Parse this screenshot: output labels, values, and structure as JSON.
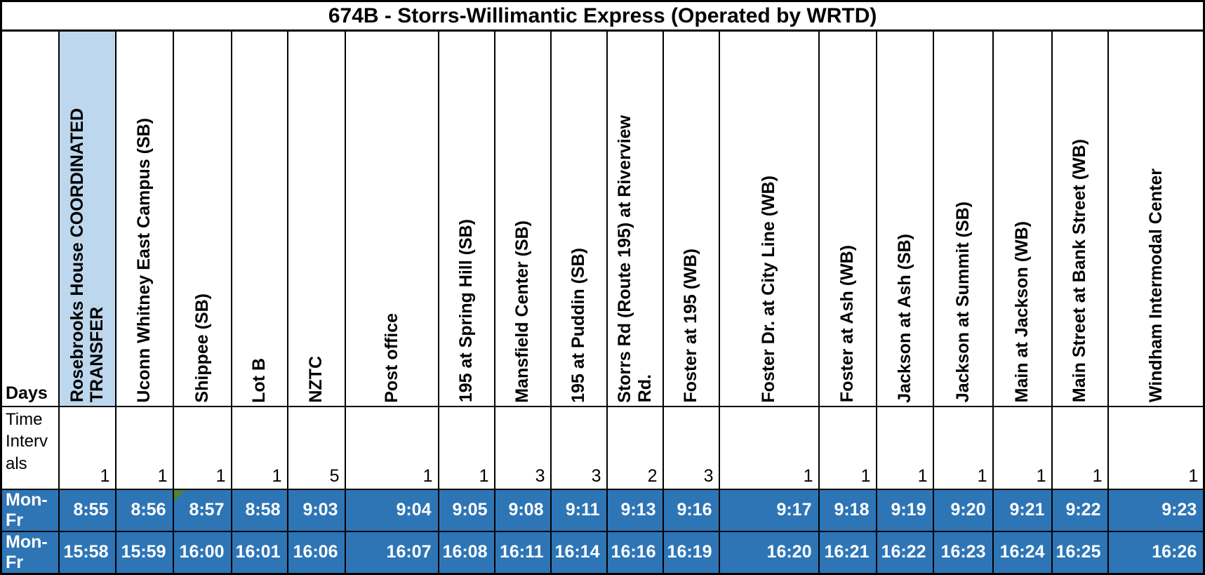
{
  "title": "674B - Storrs-Willimantic Express (Operated by WRTD)",
  "days_label": "Days",
  "intervals_label": "Time Intervals",
  "stops": [
    {
      "label": "Rosebrooks House COORDINATED",
      "label2": "TRANSFER",
      "highlight": true
    },
    {
      "label": "Uconn Whitney East Campus (SB)"
    },
    {
      "label": "Shippee (SB)"
    },
    {
      "label": "Lot B"
    },
    {
      "label": "NZTC"
    },
    {
      "label": "Post office"
    },
    {
      "label": "195 at Spring Hill (SB)"
    },
    {
      "label": "Mansfield Center (SB)"
    },
    {
      "label": "195 at Puddin (SB)"
    },
    {
      "label": "Storrs Rd (Route 195) at Riverview",
      "label2": "Rd."
    },
    {
      "label": "Foster at 195 (WB)"
    },
    {
      "label": "Foster Dr. at City Line (WB)"
    },
    {
      "label": "Foster at Ash (WB)"
    },
    {
      "label": "Jackson at Ash (SB)"
    },
    {
      "label": "Jackson at Summit (SB)"
    },
    {
      "label": "Main at Jackson (WB)"
    },
    {
      "label": "Main Street at Bank Street (WB)"
    },
    {
      "label": "Windham Intermodal Center"
    }
  ],
  "intervals": [
    "1",
    "1",
    "1",
    "1",
    "5",
    "1",
    "1",
    "3",
    "3",
    "2",
    "3",
    "1",
    "1",
    "1",
    "1",
    "1",
    "1",
    "1"
  ],
  "schedule_rows": [
    {
      "days": "Mon-Fr",
      "times": [
        "8:55",
        "8:56",
        "8:57",
        "8:58",
        "9:03",
        "9:04",
        "9:05",
        "9:08",
        "9:11",
        "9:13",
        "9:16",
        "9:17",
        "9:18",
        "9:19",
        "9:20",
        "9:21",
        "9:22",
        "9:23"
      ]
    },
    {
      "days": "Mon-Fr",
      "times": [
        "15:58",
        "15:59",
        "16:00",
        "16:01",
        "16:06",
        "16:07",
        "16:08",
        "16:11",
        "16:14",
        "16:16",
        "16:19",
        "16:20",
        "16:21",
        "16:22",
        "16:23",
        "16:24",
        "16:25",
        "16:26"
      ]
    }
  ],
  "error_marker": {
    "row_index": 0,
    "stop_index": 2
  },
  "colors": {
    "header_highlight": "#BDD7EE",
    "schedule_row_bg": "#2E75B6",
    "schedule_row_text": "#FFFFFF",
    "error_triangle_green": "#538135",
    "border": "#000000"
  }
}
